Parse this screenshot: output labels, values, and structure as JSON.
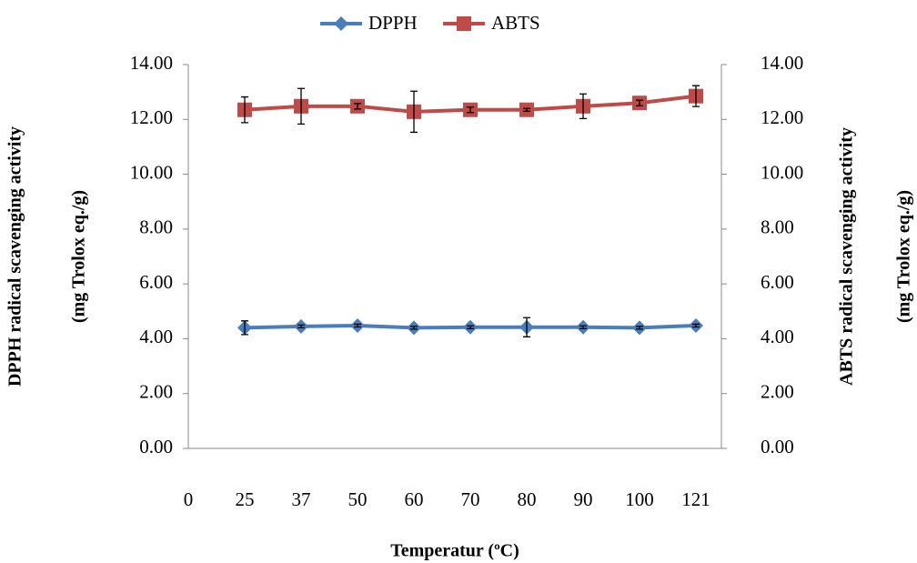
{
  "chart_data": {
    "type": "line",
    "x_label": "Temperatur (ºC)",
    "y_label": [
      "DPPH radical scavenging activity",
      "(mg Trolox eq./g)"
    ],
    "y2_label": [
      "ABTS radical scavenging activity",
      "(mg Trolox eq./g)"
    ],
    "categories": [
      "0",
      "25",
      "37",
      "50",
      "60",
      "70",
      "80",
      "90",
      "100",
      "121"
    ],
    "series": [
      {
        "name": "DPPH",
        "color": "#4a7ebb",
        "marker": "diamond",
        "values": [
          null,
          4.4,
          4.45,
          4.48,
          4.4,
          4.42,
          4.42,
          4.42,
          4.4,
          4.48
        ],
        "errors": [
          null,
          0.25,
          0.05,
          0.05,
          0.05,
          0.05,
          0.35,
          0.05,
          0.05,
          0.05
        ]
      },
      {
        "name": "ABTS",
        "color": "#be4b48",
        "marker": "square",
        "axis": "y2",
        "values": [
          null,
          12.35,
          12.48,
          12.48,
          12.28,
          12.35,
          12.35,
          12.48,
          12.6,
          12.85
        ],
        "errors": [
          null,
          0.47,
          0.65,
          0.1,
          0.75,
          0.1,
          0.05,
          0.45,
          0.1,
          0.38
        ]
      }
    ],
    "ylim": [
      0,
      14
    ],
    "yticks": [
      {
        "value": 0,
        "label": "0.00"
      },
      {
        "value": 2,
        "label": "2.00"
      },
      {
        "value": 4,
        "label": "4.00"
      },
      {
        "value": 6,
        "label": "6.00"
      },
      {
        "value": 8,
        "label": "8.00"
      },
      {
        "value": 10,
        "label": "10.00"
      },
      {
        "value": 12,
        "label": "12.00"
      },
      {
        "value": 14,
        "label": "14.00"
      }
    ],
    "y2lim": [
      0,
      14
    ],
    "y2ticks": [
      {
        "value": 0,
        "label": "0.00"
      },
      {
        "value": 2,
        "label": "2.00"
      },
      {
        "value": 4,
        "label": "4.00"
      },
      {
        "value": 6,
        "label": "6.00"
      },
      {
        "value": 8,
        "label": "8.00"
      },
      {
        "value": 10,
        "label": "10.00"
      },
      {
        "value": 12,
        "label": "12.00"
      },
      {
        "value": 14,
        "label": "14.00"
      }
    ],
    "grid": false,
    "legend": "top"
  }
}
